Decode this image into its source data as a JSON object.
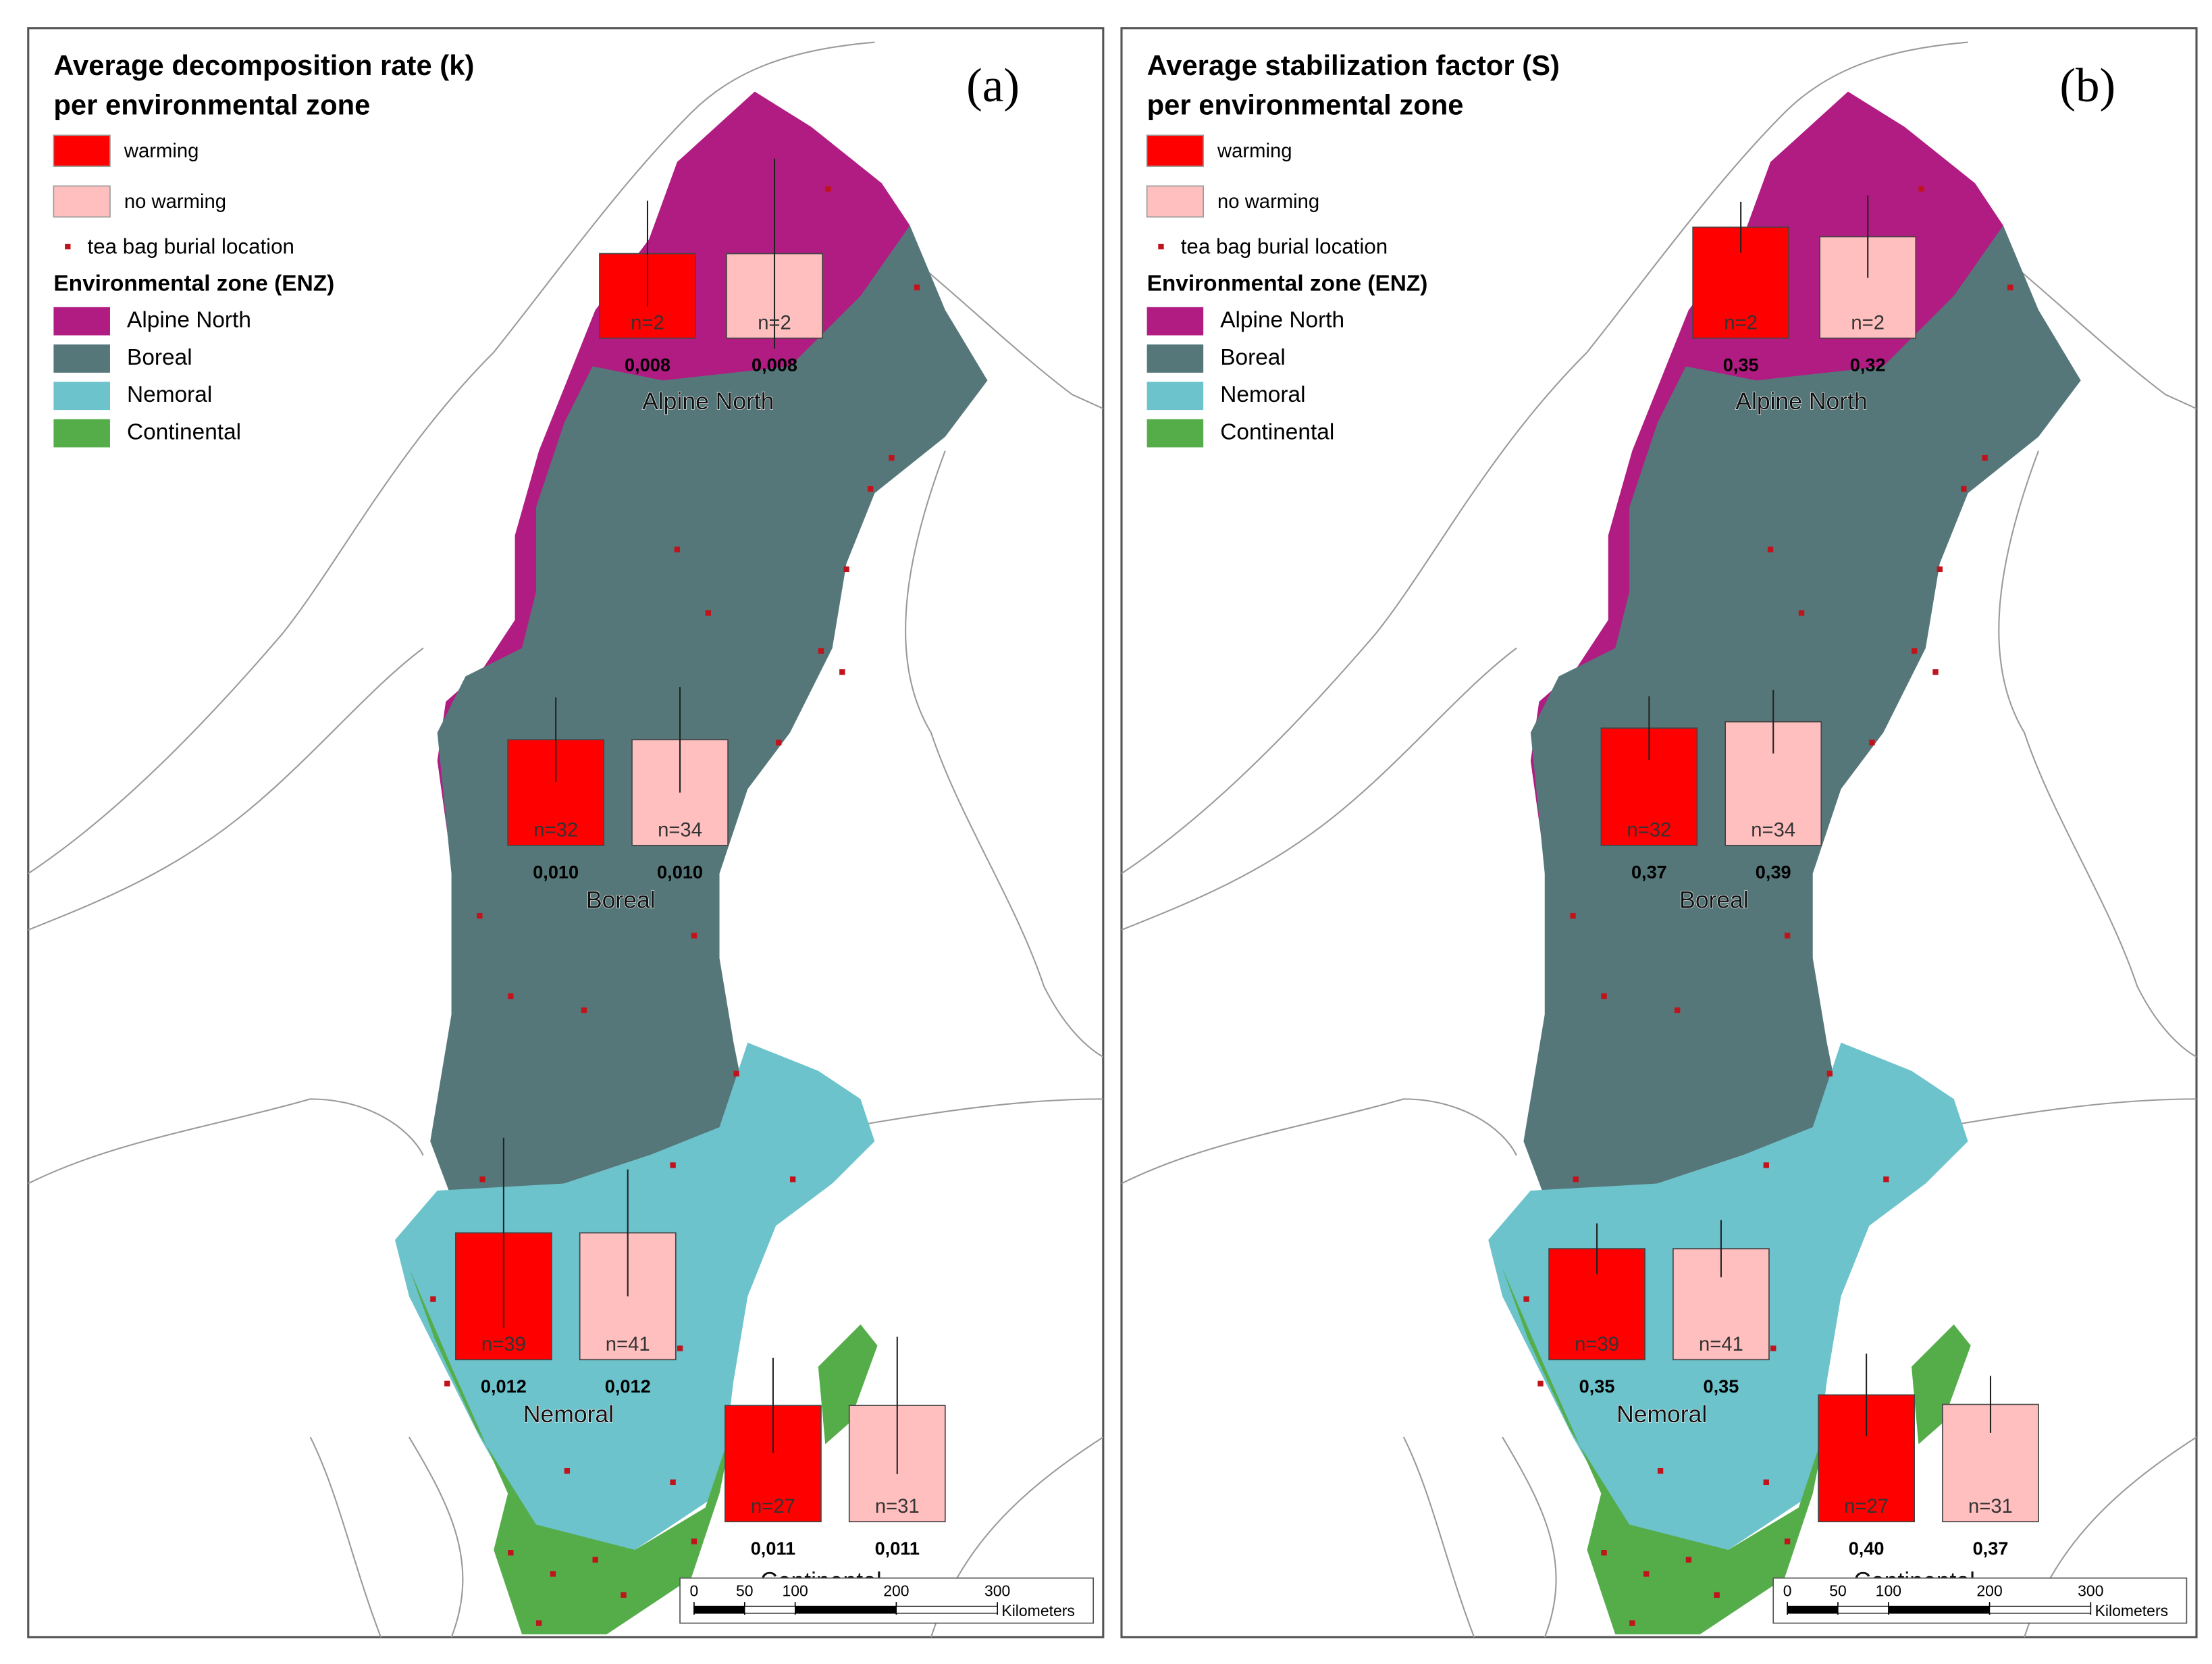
{
  "zones": [
    {
      "name": "Alpine North",
      "color": "#b01c82"
    },
    {
      "name": "Boreal",
      "color": "#56777a"
    },
    {
      "name": "Nemoral",
      "color": "#6cc3cc"
    },
    {
      "name": "Continental",
      "color": "#55ad4a"
    }
  ],
  "legend": {
    "points": "tea bag burial location",
    "zone_heading": "Environmental zone (ENZ)"
  },
  "scalebar": {
    "ticks": [
      0,
      50,
      100,
      200,
      300
    ],
    "unit": "Kilometers"
  },
  "panels": [
    {
      "label": "(a)",
      "title": [
        "Average decomposition rate (k)",
        "per environmental zone"
      ],
      "series": [
        {
          "name": "warming",
          "color": "#ff0000",
          "values": [
            0.008,
            0.01,
            0.012,
            0.011
          ],
          "value_labels": [
            "0,008",
            "0,010",
            "0,012",
            "0,011"
          ],
          "errors": [
            0.005,
            0.004,
            0.009,
            0.0045
          ],
          "n_labels": [
            "n=2",
            "n=32",
            "n=39",
            "n=27"
          ]
        },
        {
          "name": "no warming",
          "color": "#ffbfbf",
          "values": [
            0.008,
            0.01,
            0.012,
            0.011
          ],
          "value_labels": [
            "0,008",
            "0,010",
            "0,012",
            "0,011"
          ],
          "errors": [
            0.009,
            0.005,
            0.006,
            0.0065
          ],
          "n_labels": [
            "n=2",
            "n=34",
            "n=41",
            "n=31"
          ]
        }
      ]
    },
    {
      "label": "(b)",
      "title": [
        "Average stabilization factor (S)",
        "per environmental zone"
      ],
      "series": [
        {
          "name": "warming",
          "color": "#ff0000",
          "values": [
            0.35,
            0.37,
            0.35,
            0.4
          ],
          "value_labels": [
            "0,35",
            "0,37",
            "0,35",
            "0,40"
          ],
          "errors": [
            0.08,
            0.1,
            0.08,
            0.13
          ],
          "n_labels": [
            "n=2",
            "n=32",
            "n=39",
            "n=27"
          ]
        },
        {
          "name": "no warming",
          "color": "#ffbfbf",
          "values": [
            0.32,
            0.39,
            0.35,
            0.37
          ],
          "value_labels": [
            "0,32",
            "0,39",
            "0,35",
            "0,37"
          ],
          "errors": [
            0.13,
            0.1,
            0.09,
            0.09
          ],
          "n_labels": [
            "n=2",
            "n=34",
            "n=41",
            "n=31"
          ]
        }
      ]
    }
  ]
}
